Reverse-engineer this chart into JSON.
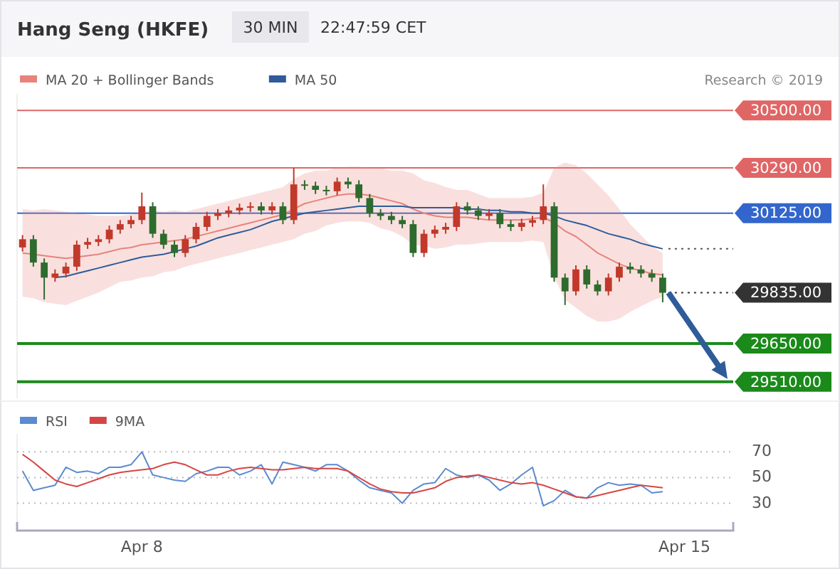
{
  "chart_data": [
    {
      "type": "candlestick",
      "title": "Hang Seng (HKFE)",
      "subtitle": "30 MIN",
      "annotations": [
        "22:47:59 CET",
        "Research © 2019"
      ],
      "categories": [
        null,
        null,
        null,
        null,
        null,
        null,
        null,
        null,
        null,
        null,
        null,
        null,
        null,
        null,
        null,
        null,
        null,
        null,
        null,
        null,
        null,
        null,
        null,
        null,
        null,
        null,
        null,
        null,
        null,
        null,
        null,
        null,
        null,
        null,
        null,
        null,
        null,
        null,
        null,
        null,
        null,
        null,
        null,
        null,
        null,
        null,
        null,
        null,
        null,
        null,
        null,
        null,
        null,
        null,
        null,
        null,
        null,
        null,
        null,
        null,
        null,
        null,
        null,
        null,
        null,
        null
      ],
      "ohlc": [
        [
          30000,
          30045,
          29985,
          30030
        ],
        [
          30030,
          30045,
          29930,
          29945
        ],
        [
          29945,
          29960,
          29810,
          29890
        ],
        [
          29890,
          29920,
          29875,
          29905
        ],
        [
          29905,
          29945,
          29890,
          29930
        ],
        [
          29930,
          30025,
          29915,
          30010
        ],
        [
          30010,
          30035,
          29995,
          30020
        ],
        [
          30020,
          30045,
          30005,
          30030
        ],
        [
          30030,
          30080,
          30015,
          30065
        ],
        [
          30065,
          30100,
          30050,
          30085
        ],
        [
          30085,
          30115,
          30070,
          30100
        ],
        [
          30100,
          30200,
          30085,
          30150
        ],
        [
          30150,
          30165,
          30035,
          30050
        ],
        [
          30050,
          30065,
          29995,
          30010
        ],
        [
          30010,
          30025,
          29965,
          29980
        ],
        [
          29980,
          30045,
          29965,
          30030
        ],
        [
          30030,
          30090,
          30015,
          30075
        ],
        [
          30075,
          30130,
          30060,
          30115
        ],
        [
          30115,
          30140,
          30100,
          30125
        ],
        [
          30125,
          30150,
          30110,
          30135
        ],
        [
          30135,
          30160,
          30120,
          30145
        ],
        [
          30145,
          30165,
          30130,
          30150
        ],
        [
          30150,
          30165,
          30120,
          30135
        ],
        [
          30135,
          30165,
          30120,
          30150
        ],
        [
          30150,
          30165,
          30085,
          30100
        ],
        [
          30100,
          30290,
          30085,
          30230
        ],
        [
          30230,
          30245,
          30210,
          30225
        ],
        [
          30225,
          30240,
          30195,
          30210
        ],
        [
          30210,
          30225,
          30190,
          30205
        ],
        [
          30205,
          30255,
          30190,
          30240
        ],
        [
          30240,
          30255,
          30215,
          30230
        ],
        [
          30230,
          30245,
          30165,
          30180
        ],
        [
          30180,
          30195,
          30110,
          30125
        ],
        [
          30125,
          30140,
          30100,
          30115
        ],
        [
          30115,
          30130,
          30085,
          30100
        ],
        [
          30100,
          30115,
          30070,
          30085
        ],
        [
          30085,
          30100,
          29965,
          29980
        ],
        [
          29980,
          30065,
          29965,
          30050
        ],
        [
          30050,
          30080,
          30035,
          30065
        ],
        [
          30065,
          30090,
          30050,
          30075
        ],
        [
          30075,
          30165,
          30060,
          30150
        ],
        [
          30150,
          30165,
          30120,
          30135
        ],
        [
          30135,
          30150,
          30100,
          30115
        ],
        [
          30115,
          30140,
          30100,
          30125
        ],
        [
          30125,
          30140,
          30070,
          30085
        ],
        [
          30085,
          30100,
          30060,
          30075
        ],
        [
          30075,
          30105,
          30060,
          30090
        ],
        [
          30090,
          30115,
          30075,
          30100
        ],
        [
          30100,
          30230,
          30085,
          30150
        ],
        [
          30150,
          30165,
          29875,
          29890
        ],
        [
          29890,
          29905,
          29790,
          29840
        ],
        [
          29840,
          29935,
          29825,
          29920
        ],
        [
          29920,
          29935,
          29850,
          29865
        ],
        [
          29865,
          29880,
          29825,
          29840
        ],
        [
          29840,
          29905,
          29825,
          29890
        ],
        [
          29890,
          29945,
          29875,
          29930
        ],
        [
          29930,
          29945,
          29905,
          29920
        ],
        [
          29920,
          29935,
          29890,
          29905
        ],
        [
          29905,
          29920,
          29875,
          29890
        ],
        [
          29890,
          29905,
          29800,
          29835
        ],
        null,
        null,
        null,
        null,
        null,
        null
      ],
      "series": [
        {
          "name": "MA 20 + Bollinger Bands",
          "type": "line",
          "color": "#e8837c",
          "values": [
            29980,
            29975,
            29970,
            29965,
            29960,
            29965,
            29970,
            29975,
            29985,
            29995,
            30000,
            30010,
            30015,
            30020,
            30025,
            30030,
            30040,
            30050,
            30060,
            30070,
            30080,
            30090,
            30100,
            30110,
            30120,
            30140,
            30160,
            30170,
            30180,
            30190,
            30195,
            30195,
            30190,
            30180,
            30170,
            30160,
            30140,
            30125,
            30115,
            30110,
            30110,
            30110,
            30105,
            30100,
            30100,
            30100,
            30100,
            30105,
            30110,
            30090,
            30060,
            30040,
            30010,
            29980,
            29960,
            29940,
            29925,
            29915,
            29905,
            29900,
            null,
            null,
            null,
            null,
            null,
            null
          ],
          "upper": [
            30140,
            30135,
            30140,
            30135,
            30130,
            30125,
            30120,
            30115,
            30115,
            30115,
            30120,
            30130,
            30135,
            30130,
            30135,
            30130,
            30140,
            30150,
            30160,
            30170,
            30180,
            30190,
            30200,
            30210,
            30220,
            30250,
            30270,
            30280,
            30280,
            30290,
            30295,
            30295,
            30290,
            30290,
            30280,
            30280,
            30270,
            30245,
            30235,
            30220,
            30210,
            30210,
            30195,
            30180,
            30180,
            30180,
            30180,
            30185,
            30200,
            30290,
            30310,
            30300,
            30270,
            30230,
            30190,
            30140,
            30085,
            30045,
            30005,
            29980,
            null,
            null,
            null,
            null,
            null,
            null
          ],
          "lower": [
            29820,
            29815,
            29800,
            29795,
            29790,
            29805,
            29820,
            29835,
            29855,
            29875,
            29880,
            29890,
            29895,
            29910,
            29915,
            29930,
            29940,
            29950,
            29960,
            29970,
            29980,
            29990,
            30000,
            30010,
            30020,
            30030,
            30050,
            30060,
            30080,
            30090,
            30095,
            30095,
            30090,
            30070,
            30060,
            30040,
            30010,
            30005,
            29995,
            30000,
            30010,
            30010,
            30015,
            30020,
            30020,
            30020,
            30020,
            30025,
            30020,
            29890,
            29810,
            29780,
            29750,
            29730,
            29730,
            29740,
            29765,
            29785,
            29805,
            29820,
            null,
            null,
            null,
            null,
            null,
            null
          ]
        },
        {
          "name": "MA 50",
          "type": "line",
          "color": "#2e5c9a",
          "values": [
            null,
            null,
            null,
            29890,
            29895,
            29905,
            29915,
            29925,
            29935,
            29945,
            29955,
            29965,
            29970,
            29975,
            29985,
            29995,
            30005,
            30020,
            30035,
            30045,
            30055,
            30065,
            30080,
            30095,
            30105,
            30115,
            30125,
            30130,
            30135,
            30140,
            30145,
            30150,
            30150,
            30150,
            30150,
            30150,
            30145,
            30145,
            30145,
            30145,
            30145,
            30140,
            30140,
            30135,
            30135,
            30130,
            30130,
            30125,
            30125,
            30115,
            30100,
            30090,
            30080,
            30065,
            30050,
            30040,
            30030,
            30015,
            30005,
            29995,
            null,
            null,
            null,
            null,
            null,
            null
          ]
        }
      ],
      "ylim": [
        29450,
        30560
      ],
      "legend": "top left",
      "ref_lines": [
        {
          "axis": "y",
          "value": 30500,
          "label": "30500.00",
          "color": "#e06666"
        },
        {
          "axis": "y",
          "value": 30290,
          "label": "30290.00",
          "color": "#e06666"
        },
        {
          "axis": "y",
          "value": 30125,
          "label": "30125.00",
          "color": "#3366cc"
        },
        {
          "axis": "y",
          "value": 29995,
          "label": null,
          "color": "#555555",
          "line_style": "dotted"
        },
        {
          "axis": "y",
          "value": 29835,
          "label": "29835.00",
          "color": "#333333",
          "line_style": "dotted"
        },
        {
          "axis": "y",
          "value": 29650,
          "label": "29650.00",
          "color": "#1a8a1a"
        },
        {
          "axis": "y",
          "value": 29510,
          "label": "29510.00",
          "color": "#1a8a1a"
        }
      ]
    },
    {
      "type": "line",
      "categories": [
        null,
        null,
        null,
        null,
        null,
        null,
        null,
        null,
        null,
        null,
        null,
        "Apr 8",
        null,
        null,
        null,
        null,
        null,
        null,
        null,
        null,
        null,
        null,
        null,
        null,
        null,
        null,
        null,
        null,
        null,
        null,
        null,
        null,
        null,
        null,
        null,
        null,
        null,
        null,
        null,
        null,
        null,
        null,
        null,
        null,
        null,
        null,
        null,
        null,
        null,
        null,
        null,
        null,
        null,
        null,
        null,
        null,
        null,
        null,
        null,
        null,
        null,
        "Apr 15",
        null,
        null,
        null,
        null
      ],
      "series": [
        {
          "name": "RSI",
          "color": "#5b8bd0",
          "values": [
            55,
            40,
            42,
            44,
            58,
            54,
            55,
            53,
            58,
            58,
            60,
            70,
            52,
            50,
            48,
            47,
            53,
            55,
            58,
            58,
            52,
            55,
            60,
            45,
            62,
            60,
            58,
            55,
            60,
            60,
            55,
            48,
            42,
            40,
            38,
            30,
            40,
            45,
            46,
            57,
            52,
            50,
            52,
            48,
            40,
            45,
            52,
            58,
            28,
            32,
            40,
            35,
            34,
            42,
            46,
            44,
            45,
            44,
            38,
            39,
            null,
            null,
            null,
            null,
            null,
            null
          ]
        },
        {
          "name": "9MA",
          "color": "#d64545",
          "values": [
            68,
            62,
            55,
            48,
            45,
            43,
            46,
            49,
            52,
            54,
            55,
            56,
            57,
            60,
            62,
            60,
            56,
            52,
            52,
            55,
            57,
            58,
            57,
            56,
            56,
            57,
            58,
            57,
            57,
            57,
            55,
            50,
            45,
            41,
            39,
            38,
            38,
            40,
            42,
            47,
            50,
            51,
            52,
            50,
            48,
            46,
            45,
            46,
            44,
            41,
            38,
            35,
            34,
            36,
            38,
            40,
            42,
            44,
            43,
            42,
            null,
            null,
            null,
            null,
            null,
            null
          ]
        }
      ],
      "ylim": [
        12,
        84
      ],
      "yticks": [
        30,
        50,
        70
      ],
      "grid": "y",
      "legend": "top left"
    }
  ]
}
